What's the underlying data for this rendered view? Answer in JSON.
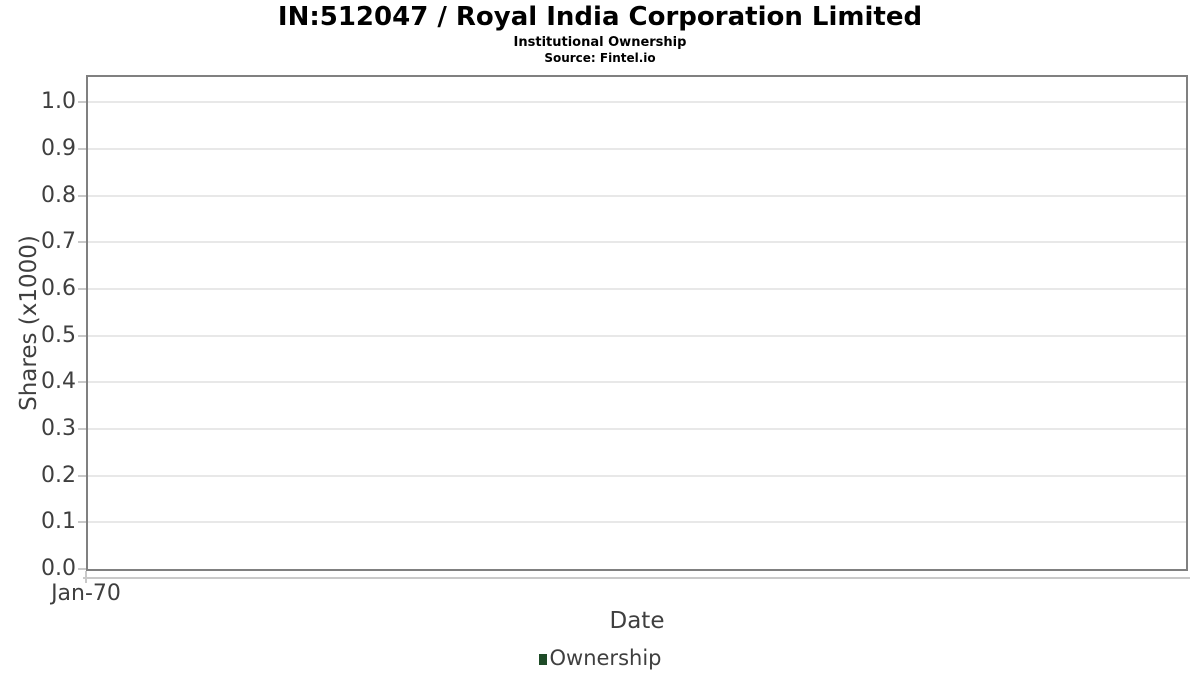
{
  "header": {
    "title": "IN:512047 / Royal India Corporation Limited",
    "subtitle": "Institutional Ownership",
    "source": "Source: Fintel.io"
  },
  "chart_data": {
    "type": "line",
    "title": "IN:512047 / Royal India Corporation Limited",
    "subtitle": "Institutional Ownership",
    "source": "Source: Fintel.io",
    "xlabel": "Date",
    "ylabel": "Shares (x1000)",
    "ylim": [
      0,
      1.054
    ],
    "grid": true,
    "yticks": [
      {
        "value": 0.0,
        "label": "0.0"
      },
      {
        "value": 0.1,
        "label": "0.1"
      },
      {
        "value": 0.2,
        "label": "0.2"
      },
      {
        "value": 0.3,
        "label": "0.3"
      },
      {
        "value": 0.4,
        "label": "0.4"
      },
      {
        "value": 0.5,
        "label": "0.5"
      },
      {
        "value": 0.6,
        "label": "0.6"
      },
      {
        "value": 0.7,
        "label": "0.7"
      },
      {
        "value": 0.8,
        "label": "0.8"
      },
      {
        "value": 0.9,
        "label": "0.9"
      },
      {
        "value": 1.0,
        "label": "1.0"
      }
    ],
    "xticks": [
      {
        "label": "Jan-70",
        "x_fraction": 0
      }
    ],
    "legend": {
      "position": "bottom",
      "entries": [
        {
          "label": "Ownership",
          "color": "#1e4b27"
        }
      ]
    },
    "series": [
      {
        "name": "Ownership",
        "color": "#1e4b27",
        "x": [],
        "values": []
      }
    ]
  },
  "colors": {
    "plot_border": "#808080",
    "gridline": "#e8e8e8",
    "tick": "#c9c9c9",
    "axis_line": "#c9c9c9",
    "label_text": "#3f3f3f",
    "legend_swatch": "#1e4b27"
  }
}
